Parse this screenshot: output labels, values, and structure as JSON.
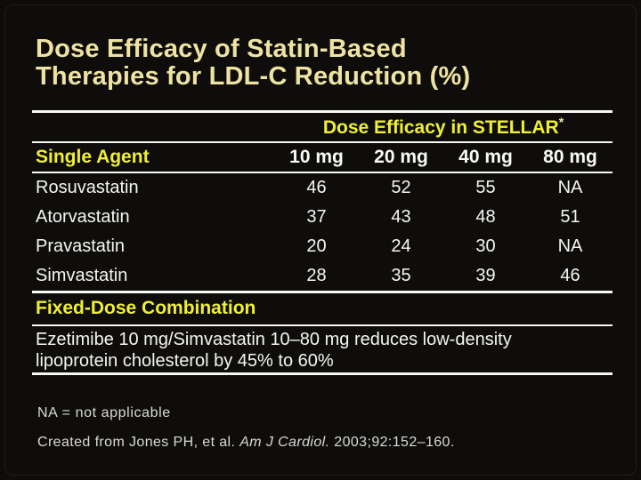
{
  "slide": {
    "title": {
      "line1": "Dose Efficacy of Statin-Based",
      "line2": "Therapies for LDL-C Reduction (%)"
    }
  },
  "table": {
    "group_header": {
      "text": "Dose Efficacy in STELLAR",
      "asterisk": "*"
    },
    "columns": [
      "Single Agent",
      "10 mg",
      "20 mg",
      "40 mg",
      "80 mg"
    ],
    "rows": [
      {
        "name": "Rosuvastatin",
        "values": [
          "46",
          "52",
          "55",
          "NA"
        ]
      },
      {
        "name": "Atorvastatin",
        "values": [
          "37",
          "43",
          "48",
          "51"
        ]
      },
      {
        "name": "Pravastatin",
        "values": [
          "20",
          "24",
          "30",
          "NA"
        ]
      },
      {
        "name": "Simvastatin",
        "values": [
          "28",
          "35",
          "39",
          "46"
        ]
      }
    ]
  },
  "fixed_dose": {
    "heading": "Fixed-Dose Combination",
    "line1": "Ezetimibe 10 mg/Simvastatin 10–80 mg reduces low-density",
    "line2": "lipoprotein cholesterol by 45% to 60%"
  },
  "footnotes": {
    "na_note": "NA = not applicable",
    "citation_prefix": "Created from Jones PH, et al. ",
    "citation_journal": "Am J Cardiol.",
    "citation_suffix": " 2003;92:152–160."
  },
  "colors": {
    "background": "#0e0d0c",
    "title_yellow": "#efe3a3",
    "accent_yellow": "#efef34",
    "body_white": "#f5f5f2",
    "rule_white": "#f8f8f4",
    "footnote_gray": "#d9d9d6"
  }
}
